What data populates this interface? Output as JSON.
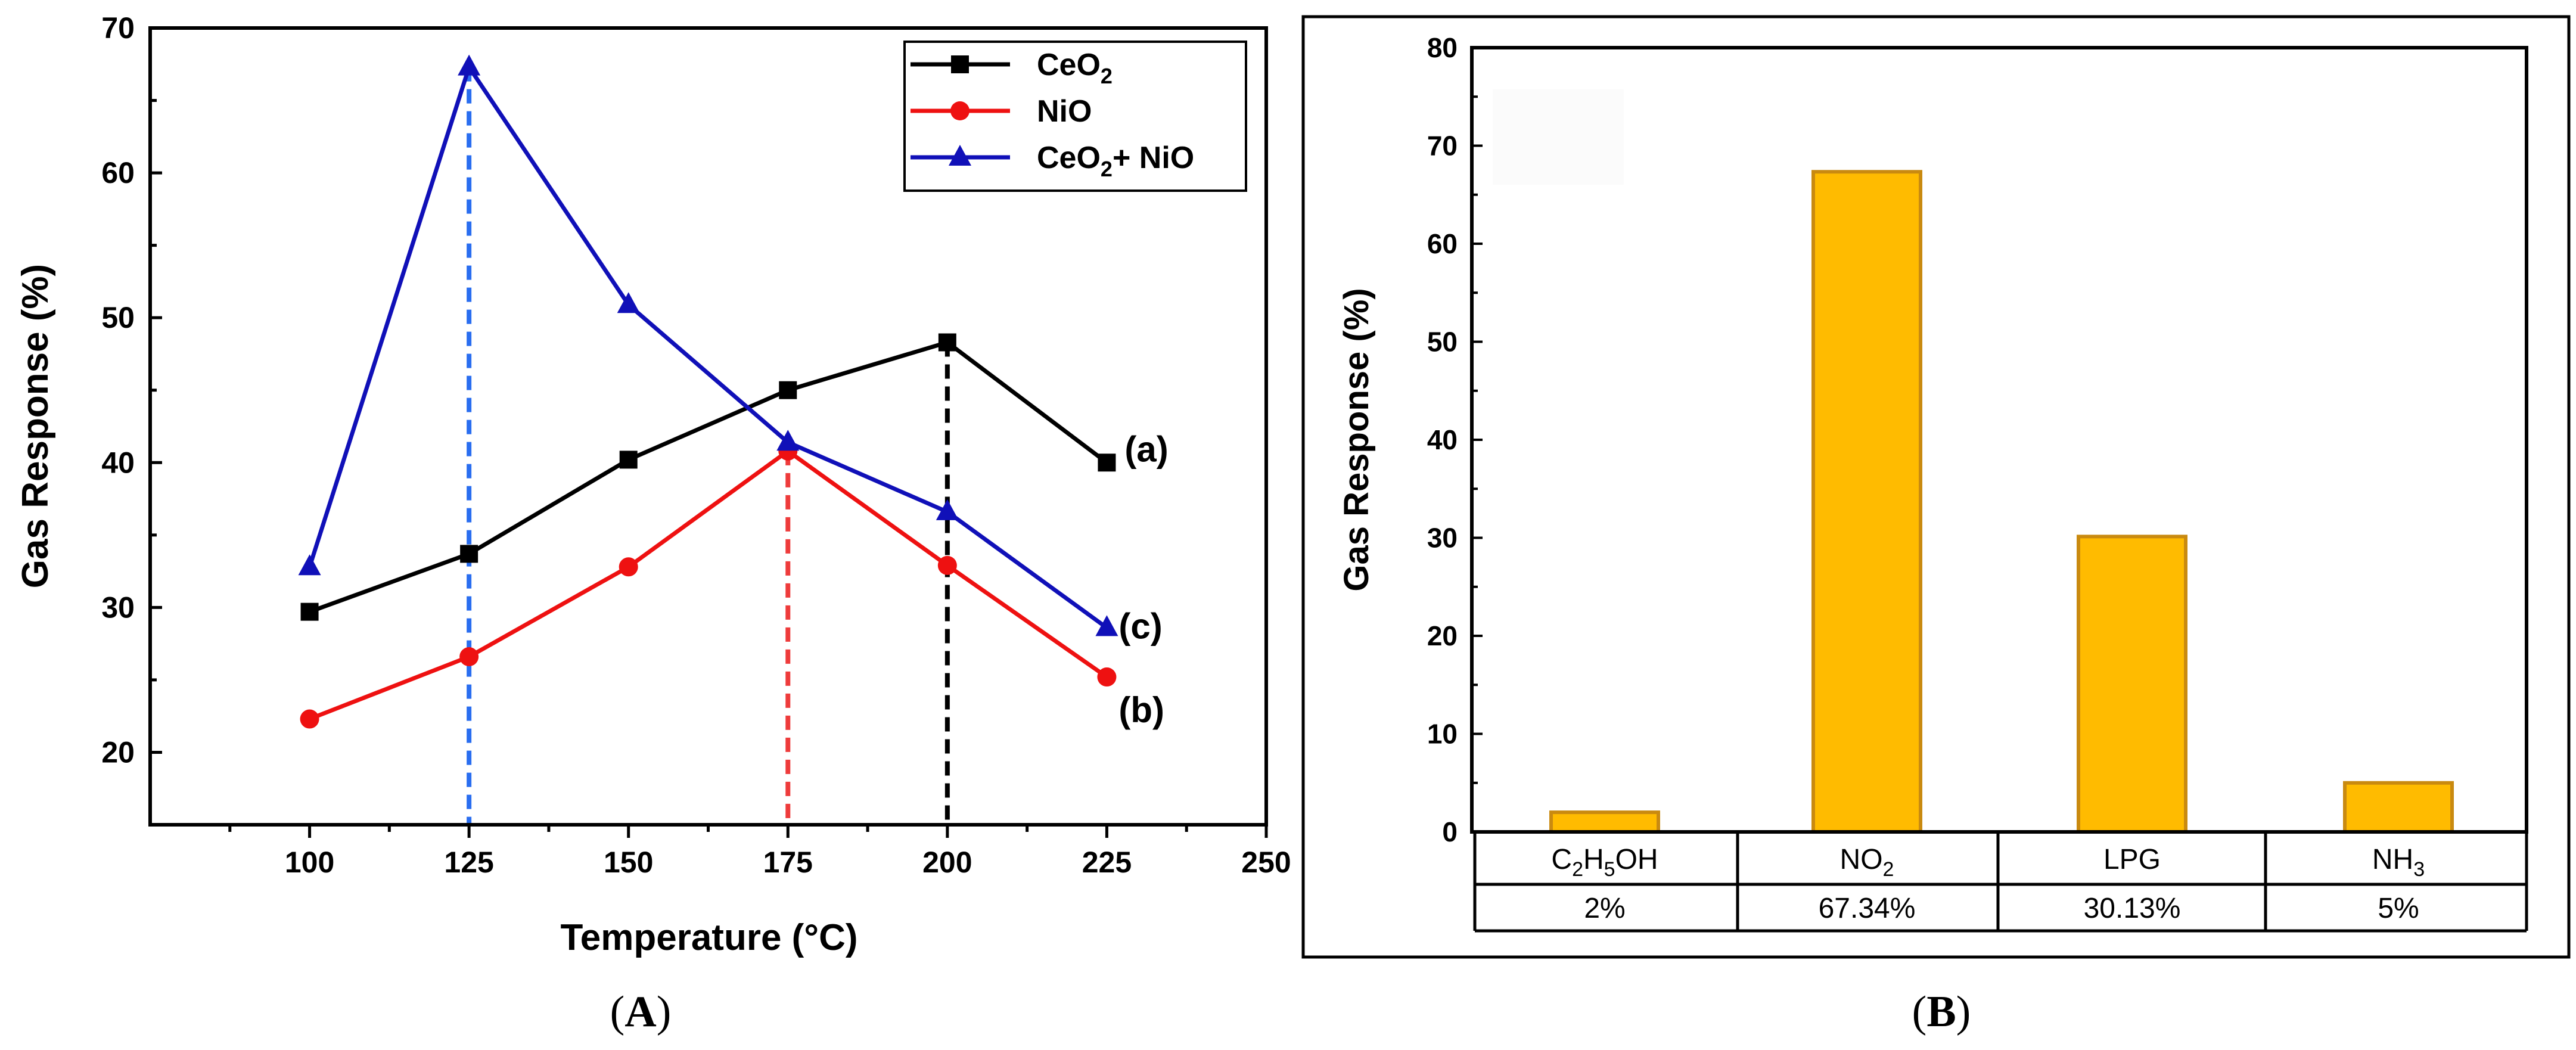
{
  "panel_labels": {
    "a": "A",
    "b": "B"
  },
  "chart_data": [
    {
      "type": "line",
      "xlabel": "Temperature (°C)",
      "ylabel": "Gas Response (%)",
      "xlim": [
        75,
        250
      ],
      "ylim": [
        15,
        70
      ],
      "xticks": [
        100,
        125,
        150,
        175,
        200,
        225,
        250
      ],
      "yticks": [
        20,
        30,
        40,
        50,
        60,
        70
      ],
      "x": [
        100,
        125,
        150,
        175,
        200,
        225
      ],
      "series": [
        {
          "name": "CeO2",
          "legend_base": "CeO",
          "legend_sub": "2",
          "legend_tail": "",
          "color": "#000000",
          "marker": "square",
          "label": "(a)",
          "values": [
            29.7,
            33.7,
            40.2,
            45.0,
            48.3,
            40.0
          ],
          "optimum_x": 200,
          "optimum_color": "#000000"
        },
        {
          "name": "NiO",
          "legend_base": "NiO",
          "legend_sub": "",
          "legend_tail": "",
          "color": "#ee1111",
          "marker": "circle",
          "label": "(b)",
          "values": [
            22.3,
            26.6,
            32.8,
            40.8,
            32.9,
            25.2
          ],
          "optimum_x": 175,
          "optimum_color": "#ee3b3b"
        },
        {
          "name": "CeO2+ NiO",
          "legend_base": "CeO",
          "legend_sub": "2",
          "legend_tail": "+ NiO",
          "color": "#1010b8",
          "marker": "triangle",
          "label": "(c)",
          "values": [
            32.8,
            67.3,
            50.9,
            41.4,
            36.6,
            28.6
          ],
          "optimum_x": 125,
          "optimum_color": "#2a6ef0"
        }
      ]
    },
    {
      "type": "bar",
      "ylabel": "Gas Response (%)",
      "ylim": [
        0,
        80
      ],
      "yticks": [
        0,
        10,
        20,
        30,
        40,
        50,
        60,
        70,
        80
      ],
      "bar_color": "#ffbb00",
      "bar_edge": "#c98a10",
      "categories": [
        {
          "base": "C",
          "parts": [
            [
              "C",
              ""
            ],
            [
              "2",
              "sub"
            ],
            [
              "H",
              ""
            ],
            [
              "5",
              "sub"
            ],
            [
              "OH",
              ""
            ]
          ]
        },
        {
          "base": "NO",
          "parts": [
            [
              "NO",
              ""
            ],
            [
              "2",
              "sub"
            ]
          ]
        },
        {
          "base": "LPG",
          "parts": [
            [
              "LPG",
              ""
            ]
          ]
        },
        {
          "base": "NH",
          "parts": [
            [
              "NH",
              ""
            ],
            [
              "3",
              "sub"
            ]
          ]
        }
      ],
      "values": [
        2.0,
        67.34,
        30.13,
        5.0
      ],
      "table_values": [
        "2%",
        "67.34%",
        "30.13%",
        "5%"
      ]
    }
  ]
}
